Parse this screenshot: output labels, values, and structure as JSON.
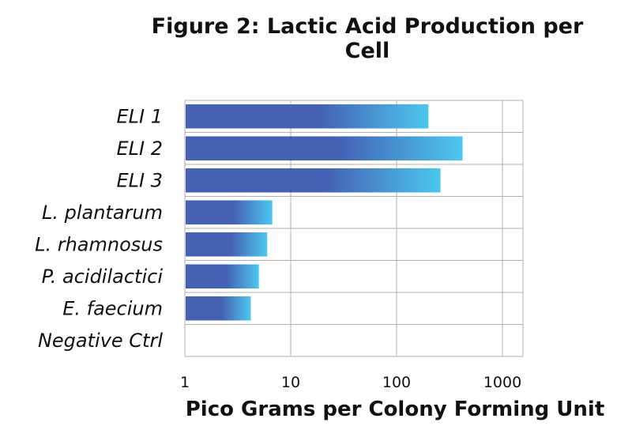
{
  "colors": {
    "bar_dark": "#4461b4",
    "bar_light": "#4dc7ee",
    "grid": "#b0b0b0"
  },
  "chart_data": {
    "type": "bar",
    "orientation": "horizontal",
    "title": "Figure 2: Lactic Acid Production per Cell",
    "xlabel": "Pico Grams per Colony Forming Unit",
    "ylabel": "",
    "xscale": "log",
    "xlim": [
      1,
      1200
    ],
    "xticks": [
      "1",
      "10",
      "100",
      "1000"
    ],
    "grid": true,
    "categories": [
      "ELI 1",
      "ELI 2",
      "ELI 3",
      "L. plantarum",
      "L. rhamnosus",
      "P. acidilactici",
      "E. faecium",
      "Negative Ctrl"
    ],
    "values": [
      200,
      420,
      260,
      6.7,
      6,
      5,
      4.2,
      1
    ]
  }
}
